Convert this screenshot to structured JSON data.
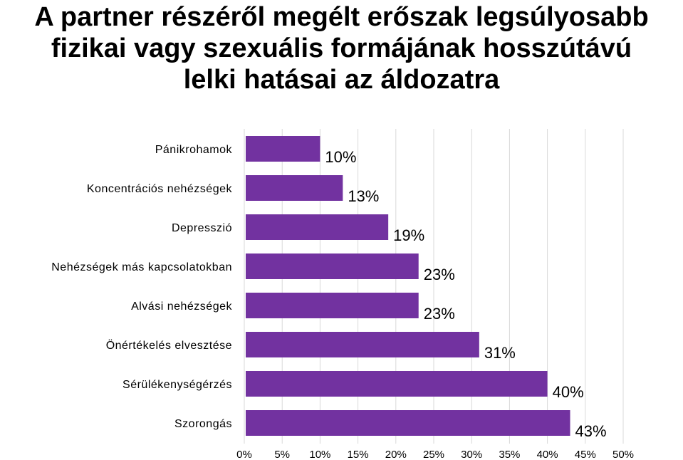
{
  "title_lines": [
    "A partner részéről megélt erőszak legsúlyosabb",
    "fizikai vagy szexuális formájának hosszútávú",
    "lelki hatásai az áldozatra"
  ],
  "colors": {
    "bar": "#7232A0",
    "grid": "#D9D9D9",
    "text": "#000000"
  },
  "chart_data": {
    "type": "bar",
    "orientation": "horizontal",
    "title": "A partner részéről megélt erőszak legsúlyosabb fizikai vagy szexuális formájának hosszútávú lelki hatásai az áldozatra",
    "categories": [
      "Pánikrohamok",
      "Koncentrációs nehézségek",
      "Depresszió",
      "Nehézségek más kapcsolatokban",
      "Alvási nehézségek",
      "Önértékelés elvesztése",
      "Sérülékenységérzés",
      "Szorongás"
    ],
    "values": [
      10,
      13,
      19,
      23,
      23,
      31,
      40,
      43
    ],
    "data_labels": [
      "10%",
      "13%",
      "19%",
      "23%",
      "23%",
      "31%",
      "40%",
      "43%"
    ],
    "xlim": [
      0,
      50
    ],
    "xticks": [
      0,
      5,
      10,
      15,
      20,
      25,
      30,
      35,
      40,
      45,
      50
    ],
    "xtick_labels": [
      "0%",
      "5%",
      "10%",
      "15%",
      "20%",
      "25%",
      "30%",
      "35%",
      "40%",
      "45%",
      "50%"
    ],
    "grid": true,
    "legend": "none"
  }
}
